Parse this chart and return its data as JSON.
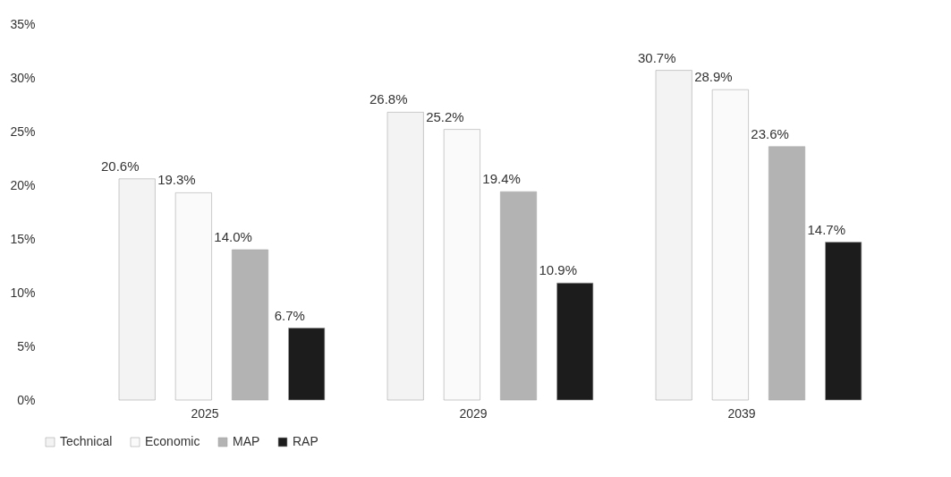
{
  "chart_data": {
    "type": "bar",
    "categories": [
      "2025",
      "2029",
      "2039"
    ],
    "series": [
      {
        "name": "Technical",
        "color": "#f3f3f3",
        "values": [
          20.6,
          26.8,
          30.7
        ],
        "value_labels": [
          "20.6%",
          "26.8%",
          "30.7%"
        ]
      },
      {
        "name": "Economic",
        "color": "#fafafa",
        "values": [
          19.3,
          25.2,
          28.9
        ],
        "value_labels": [
          "19.3%",
          "25.2%",
          "28.9%"
        ]
      },
      {
        "name": "MAP",
        "color": "#b3b3b3",
        "values": [
          14.0,
          19.4,
          23.6
        ],
        "value_labels": [
          "14.0%",
          "19.4%",
          "23.6%"
        ]
      },
      {
        "name": "RAP",
        "color": "#1c1c1c",
        "values": [
          6.7,
          10.9,
          14.7
        ],
        "value_labels": [
          "6.7%",
          "10.9%",
          "14.7%"
        ]
      }
    ],
    "ylim": [
      0,
      35
    ],
    "yticks": [
      {
        "value": 0,
        "label": "0%"
      },
      {
        "value": 5,
        "label": "5%"
      },
      {
        "value": 10,
        "label": "10%"
      },
      {
        "value": 15,
        "label": "15%"
      },
      {
        "value": 20,
        "label": "20%"
      },
      {
        "value": 25,
        "label": "25%"
      },
      {
        "value": 30,
        "label": "30%"
      },
      {
        "value": 35,
        "label": "35%"
      }
    ],
    "grid": false,
    "legend": "bottom"
  }
}
